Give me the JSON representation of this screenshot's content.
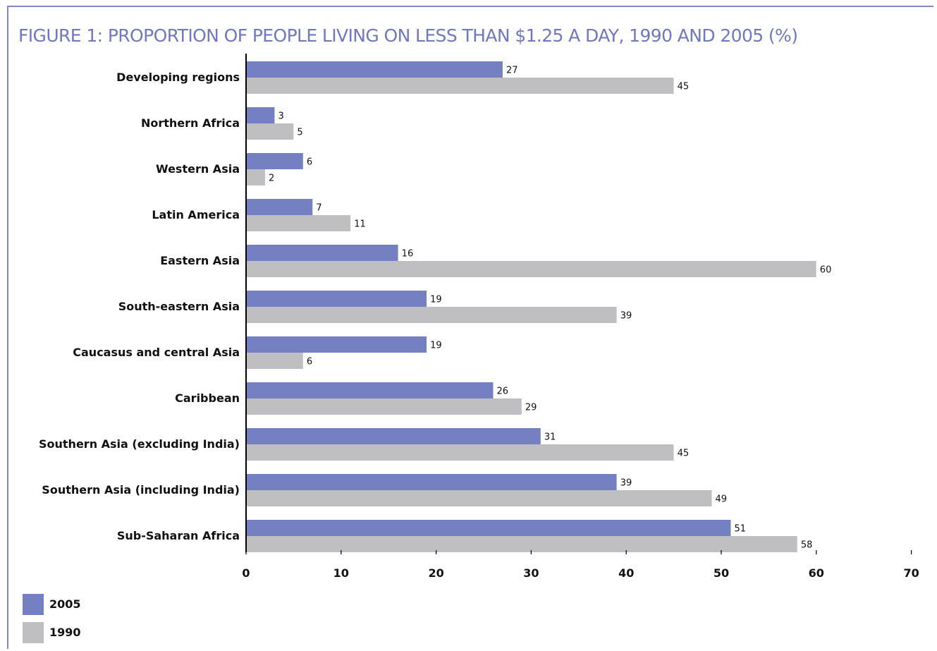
{
  "title": "FIGURE 1: PROPORTION OF PEOPLE LIVING ON LESS THAN $1.25 A DAY, 1990 AND 2005 (%)",
  "colors": {
    "title": "#6f78c0",
    "frame": "#8288c4",
    "series_2005": "#7480c1",
    "series_1990": "#bfbfc1",
    "text": "#111111"
  },
  "legend": [
    {
      "name": "2005",
      "color": "#7480c1"
    },
    {
      "name": "1990",
      "color": "#bfbfc1"
    }
  ],
  "chart_data": {
    "type": "bar",
    "orientation": "horizontal",
    "title": "FIGURE 1: PROPORTION OF PEOPLE LIVING ON LESS THAN $1.25 A DAY, 1990 AND 2005 (%)",
    "categories": [
      "Developing regions",
      "Northern Africa",
      "Western Asia",
      "Latin America",
      "Eastern Asia",
      "South-eastern Asia",
      "Caucasus and central Asia",
      "Caribbean",
      "Southern Asia (excluding India)",
      "Southern Asia (including India)",
      "Sub-Saharan Africa"
    ],
    "series": [
      {
        "name": "2005",
        "color": "#7480c1",
        "values": [
          27,
          3,
          6,
          7,
          16,
          19,
          19,
          26,
          31,
          39,
          51
        ]
      },
      {
        "name": "1990",
        "color": "#bfbfc1",
        "values": [
          45,
          5,
          2,
          11,
          60,
          39,
          6,
          29,
          45,
          49,
          58
        ]
      }
    ],
    "xlim": [
      0,
      70
    ],
    "xticks": [
      "0",
      "10",
      "20",
      "30",
      "40",
      "50",
      "60",
      "70"
    ],
    "data_labels": true,
    "grid": false,
    "legend_position": "bottom-left"
  }
}
